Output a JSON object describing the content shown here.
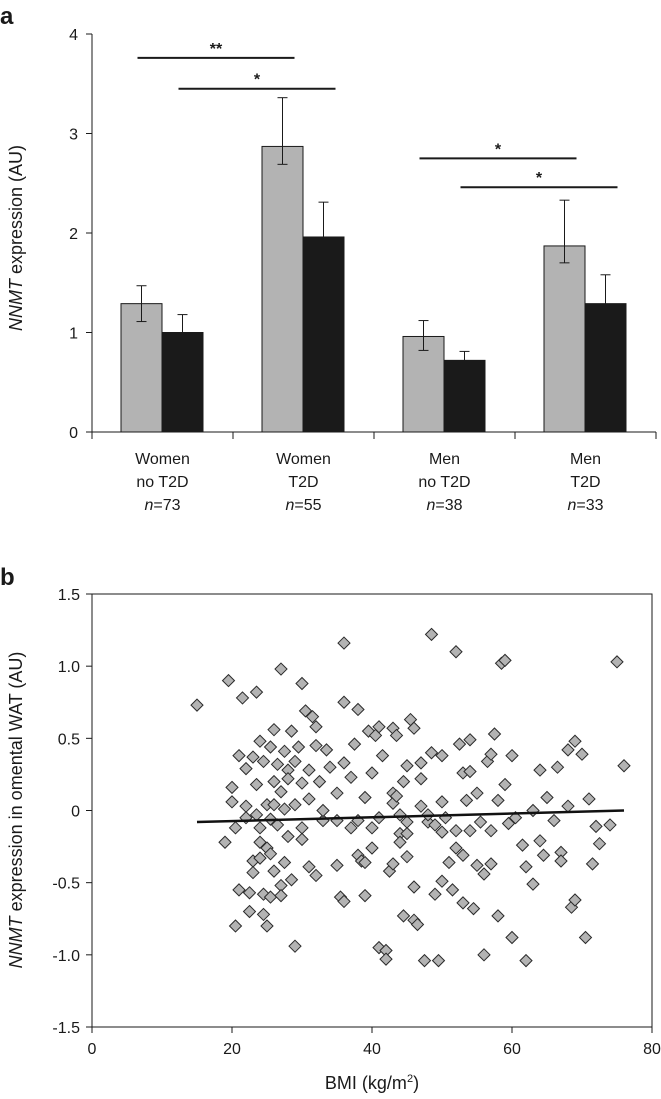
{
  "chart_data": [
    {
      "panel": "a",
      "type": "bar",
      "title": "",
      "ylabel_italic": "NNMT",
      "ylabel_rest": " expression (AU)",
      "ylim": [
        0,
        4
      ],
      "yticks": [
        "0",
        "1",
        "2",
        "3",
        "4"
      ],
      "categories": [
        {
          "line1": "Women",
          "line2": "no T2D",
          "n_italic": "n",
          "n_rest": "=73"
        },
        {
          "line1": "Women",
          "line2": "T2D",
          "n_italic": "n",
          "n_rest": "=55"
        },
        {
          "line1": "Men",
          "line2": "no T2D",
          "n_italic": "n",
          "n_rest": "=38"
        },
        {
          "line1": "Men",
          "line2": "T2D",
          "n_italic": "n",
          "n_rest": "=33"
        }
      ],
      "series": [
        {
          "name": "grey",
          "color": "#b3b3b3",
          "values": [
            1.29,
            2.87,
            0.96,
            1.87
          ],
          "err_low": [
            0.18,
            0.18,
            0.14,
            0.17
          ],
          "err_high": [
            0.18,
            0.49,
            0.16,
            0.46
          ]
        },
        {
          "name": "black",
          "color": "#1a1a1a",
          "values": [
            1.0,
            1.96,
            0.72,
            1.29
          ],
          "err_low": [
            0.19,
            0.35,
            0.09,
            0.29
          ],
          "err_high": [
            0.18,
            0.35,
            0.09,
            0.29
          ]
        }
      ],
      "significance": [
        {
          "from_cat": 0,
          "to_cat": 1,
          "from_bar": "grey",
          "to_bar": "grey",
          "level": 3.76,
          "label": "**"
        },
        {
          "from_cat": 0,
          "to_cat": 1,
          "from_bar": "black",
          "to_bar": "black",
          "level": 3.45,
          "label": "*"
        },
        {
          "from_cat": 2,
          "to_cat": 3,
          "from_bar": "grey",
          "to_bar": "grey",
          "level": 2.75,
          "label": "*"
        },
        {
          "from_cat": 2,
          "to_cat": 3,
          "from_bar": "black",
          "to_bar": "black",
          "level": 2.46,
          "label": "*"
        }
      ]
    },
    {
      "panel": "b",
      "type": "scatter",
      "title": "",
      "xlabel": "BMI (kg/m",
      "xlabel_sup": "2",
      "xlabel_end": ")",
      "ylabel_italic": "NNMT",
      "ylabel_rest": " expression in omental WAT (AU)",
      "xlim": [
        0,
        80
      ],
      "ylim": [
        -1.5,
        1.5
      ],
      "xticks": [
        "0",
        "20",
        "40",
        "60",
        "80"
      ],
      "yticks": [
        "-1.5",
        "-1.0",
        "-0.5",
        "0",
        "0.5",
        "1.0",
        "1.5"
      ],
      "trendline": {
        "x": [
          15,
          76
        ],
        "y": [
          -0.08,
          0.0
        ]
      },
      "marker_color": "#b3b3b3",
      "points": [
        [
          15,
          0.73
        ],
        [
          19,
          -0.22
        ],
        [
          19.5,
          0.9
        ],
        [
          20,
          0.16
        ],
        [
          20,
          0.06
        ],
        [
          20.5,
          -0.12
        ],
        [
          20.5,
          -0.8
        ],
        [
          21,
          0.38
        ],
        [
          21,
          -0.55
        ],
        [
          21.5,
          0.78
        ],
        [
          22,
          0.29
        ],
        [
          22,
          0.03
        ],
        [
          22,
          -0.05
        ],
        [
          22.5,
          -0.57
        ],
        [
          22.5,
          -0.7
        ],
        [
          23,
          0.37
        ],
        [
          23,
          -0.35
        ],
        [
          23,
          -0.43
        ],
        [
          23.5,
          0.82
        ],
        [
          23.5,
          0.18
        ],
        [
          23.5,
          -0.03
        ],
        [
          24,
          0.48
        ],
        [
          24,
          -0.12
        ],
        [
          24,
          -0.22
        ],
        [
          24,
          -0.33
        ],
        [
          24.5,
          0.34
        ],
        [
          24.5,
          -0.58
        ],
        [
          24.5,
          -0.72
        ],
        [
          25,
          0.04
        ],
        [
          25,
          -0.26
        ],
        [
          25,
          -0.8
        ],
        [
          25.5,
          0.44
        ],
        [
          25.5,
          -0.06
        ],
        [
          25.5,
          -0.3
        ],
        [
          25.5,
          -0.6
        ],
        [
          26,
          0.2
        ],
        [
          26,
          0.04
        ],
        [
          26,
          -0.42
        ],
        [
          26.5,
          0.32
        ],
        [
          26.5,
          -0.1
        ],
        [
          27,
          0.98
        ],
        [
          27,
          0.13
        ],
        [
          27,
          -0.52
        ],
        [
          27,
          -0.59
        ],
        [
          27.5,
          0.41
        ],
        [
          27.5,
          0.01
        ],
        [
          27.5,
          -0.36
        ],
        [
          28,
          0.28
        ],
        [
          28,
          0.22
        ],
        [
          28,
          -0.18
        ],
        [
          28.5,
          0.55
        ],
        [
          28.5,
          -0.48
        ],
        [
          29,
          0.34
        ],
        [
          29,
          0.04
        ],
        [
          29,
          -0.94
        ],
        [
          29.5,
          0.44
        ],
        [
          30,
          0.88
        ],
        [
          30,
          0.19
        ],
        [
          30,
          -0.12
        ],
        [
          30,
          -0.2
        ],
        [
          30.5,
          0.69
        ],
        [
          31,
          0.28
        ],
        [
          31,
          0.08
        ],
        [
          31,
          -0.39
        ],
        [
          31.5,
          0.65
        ],
        [
          32,
          0.45
        ],
        [
          32,
          0.58
        ],
        [
          32,
          -0.45
        ],
        [
          32.5,
          0.2
        ],
        [
          33,
          -0.07
        ],
        [
          33.5,
          0.42
        ],
        [
          34,
          0.3
        ],
        [
          35,
          0.12
        ],
        [
          35,
          -0.07
        ],
        [
          35,
          -0.38
        ],
        [
          35.5,
          -0.6
        ],
        [
          36,
          1.16
        ],
        [
          36,
          0.75
        ],
        [
          36,
          0.33
        ],
        [
          36,
          -0.63
        ],
        [
          37,
          0.23
        ],
        [
          37,
          -0.12
        ],
        [
          37.5,
          0.46
        ],
        [
          38,
          -0.07
        ],
        [
          38,
          -0.31
        ],
        [
          38.5,
          -0.35
        ],
        [
          39,
          0.09
        ],
        [
          39,
          -0.36
        ],
        [
          39,
          -0.59
        ],
        [
          39.5,
          0.55
        ],
        [
          40,
          0.26
        ],
        [
          40,
          -0.12
        ],
        [
          40,
          -0.26
        ],
        [
          40.5,
          0.52
        ],
        [
          41,
          -0.05
        ],
        [
          41,
          -0.95
        ],
        [
          41.5,
          0.38
        ],
        [
          42,
          -0.97
        ],
        [
          42,
          -1.03
        ],
        [
          42.5,
          -0.42
        ],
        [
          43,
          0.12
        ],
        [
          43,
          0.05
        ],
        [
          43,
          0.57
        ],
        [
          43,
          -0.37
        ],
        [
          43.5,
          0.1
        ],
        [
          43.5,
          0.52
        ],
        [
          44,
          -0.03
        ],
        [
          44,
          -0.16
        ],
        [
          44,
          -0.22
        ],
        [
          44.5,
          0.2
        ],
        [
          44.5,
          -0.73
        ],
        [
          45,
          0.31
        ],
        [
          45,
          -0.08
        ],
        [
          45,
          -0.16
        ],
        [
          45,
          -0.32
        ],
        [
          45.5,
          0.63
        ],
        [
          46,
          0.57
        ],
        [
          46,
          -0.53
        ],
        [
          46,
          -0.76
        ],
        [
          46.5,
          -0.79
        ],
        [
          47,
          0.33
        ],
        [
          47,
          0.22
        ],
        [
          47.5,
          -1.04
        ],
        [
          48,
          -0.08
        ],
        [
          48,
          -0.03
        ],
        [
          48.5,
          1.22
        ],
        [
          48.5,
          0.4
        ],
        [
          49,
          -0.1
        ],
        [
          49,
          -0.58
        ],
        [
          49.5,
          -1.04
        ],
        [
          50,
          0.38
        ],
        [
          50,
          0.06
        ],
        [
          50,
          -0.15
        ],
        [
          50,
          -0.49
        ],
        [
          50.5,
          -0.05
        ],
        [
          51,
          -0.36
        ],
        [
          51.5,
          -0.55
        ],
        [
          52,
          1.1
        ],
        [
          52,
          -0.26
        ],
        [
          52.5,
          0.46
        ],
        [
          53,
          0.26
        ],
        [
          53,
          -0.31
        ],
        [
          53,
          -0.64
        ],
        [
          53.5,
          0.07
        ],
        [
          54,
          0.49
        ],
        [
          54,
          0.27
        ],
        [
          54,
          -0.14
        ],
        [
          54.5,
          -0.68
        ],
        [
          55,
          0.12
        ],
        [
          55,
          -0.38
        ],
        [
          55.5,
          -0.08
        ],
        [
          56,
          -0.44
        ],
        [
          56,
          -1.0
        ],
        [
          56.5,
          0.34
        ],
        [
          57,
          0.39
        ],
        [
          57,
          -0.14
        ],
        [
          57,
          -0.37
        ],
        [
          57.5,
          0.53
        ],
        [
          58,
          0.07
        ],
        [
          58,
          -0.73
        ],
        [
          58.5,
          1.02
        ],
        [
          59,
          1.04
        ],
        [
          59,
          0.18
        ],
        [
          59.5,
          -0.09
        ],
        [
          60,
          0.38
        ],
        [
          60,
          -0.88
        ],
        [
          60.5,
          -0.05
        ],
        [
          61.5,
          -0.24
        ],
        [
          62,
          -1.04
        ],
        [
          62,
          -0.39
        ],
        [
          63,
          0.0
        ],
        [
          63,
          -0.51
        ],
        [
          64,
          0.28
        ],
        [
          64,
          -0.21
        ],
        [
          64.5,
          -0.31
        ],
        [
          65,
          0.09
        ],
        [
          66.5,
          0.3
        ],
        [
          67,
          -0.29
        ],
        [
          67,
          -0.35
        ],
        [
          68,
          0.42
        ],
        [
          68,
          0.03
        ],
        [
          68.5,
          -0.67
        ],
        [
          69,
          -0.62
        ],
        [
          69,
          0.48
        ],
        [
          70,
          0.39
        ],
        [
          70.5,
          -0.88
        ],
        [
          71,
          0.08
        ],
        [
          71.5,
          -0.37
        ],
        [
          72,
          -0.11
        ],
        [
          72.5,
          -0.23
        ],
        [
          74,
          -0.1
        ],
        [
          75,
          1.03
        ],
        [
          76,
          0.31
        ],
        [
          33,
          0.0
        ],
        [
          41,
          0.58
        ],
        [
          47,
          0.03
        ],
        [
          38,
          0.7
        ],
        [
          52,
          -0.14
        ],
        [
          26,
          0.56
        ],
        [
          66,
          -0.07
        ]
      ]
    }
  ],
  "panels": {
    "a_letter": "a",
    "b_letter": "b"
  }
}
